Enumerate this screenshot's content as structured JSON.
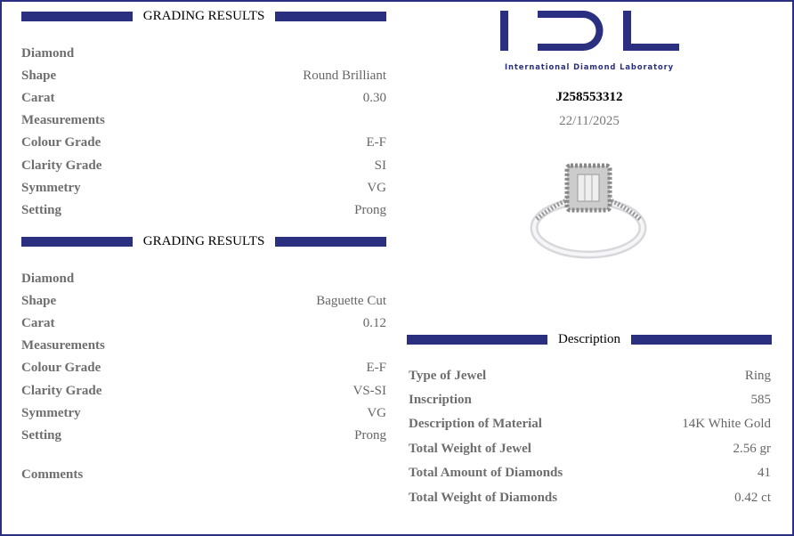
{
  "brand": {
    "logo_letters": "IDL",
    "name": "International Diamond Laboratory",
    "color": "#2b2f80"
  },
  "report": {
    "code": "J258553312",
    "date": "22/11/2025"
  },
  "sections": [
    {
      "title": "GRADING RESULTS",
      "rows": [
        {
          "label": "Diamond",
          "value": ""
        },
        {
          "label": "Shape",
          "value": "Round Brilliant"
        },
        {
          "label": "Carat",
          "value": "0.30"
        },
        {
          "label": "Measurements",
          "value": ""
        },
        {
          "label": "Colour Grade",
          "value": "E-F"
        },
        {
          "label": "Clarity Grade",
          "value": "SI"
        },
        {
          "label": "Symmetry",
          "value": "VG"
        },
        {
          "label": "Setting",
          "value": "Prong"
        }
      ]
    },
    {
      "title": "GRADING RESULTS",
      "rows": [
        {
          "label": "Diamond",
          "value": ""
        },
        {
          "label": "Shape",
          "value": "Baguette Cut"
        },
        {
          "label": "Carat",
          "value": "0.12"
        },
        {
          "label": "Measurements",
          "value": ""
        },
        {
          "label": "Colour Grade",
          "value": "E-F"
        },
        {
          "label": "Clarity Grade",
          "value": "VS-SI"
        },
        {
          "label": "Symmetry",
          "value": "VG"
        },
        {
          "label": "Setting",
          "value": "Prong"
        }
      ]
    }
  ],
  "comments_label": "Comments",
  "description": {
    "title": "Description",
    "rows": [
      {
        "label": "Type of Jewel",
        "value": "Ring"
      },
      {
        "label": "Inscription",
        "value": "585"
      },
      {
        "label": "Description of Material",
        "value": "14K White Gold"
      },
      {
        "label": "Total Weight of Jewel",
        "value": "2.56 gr"
      },
      {
        "label": "Total Amount of Diamonds",
        "value": "41"
      },
      {
        "label": "Total Weight of Diamonds",
        "value": "0.42 ct"
      }
    ]
  }
}
